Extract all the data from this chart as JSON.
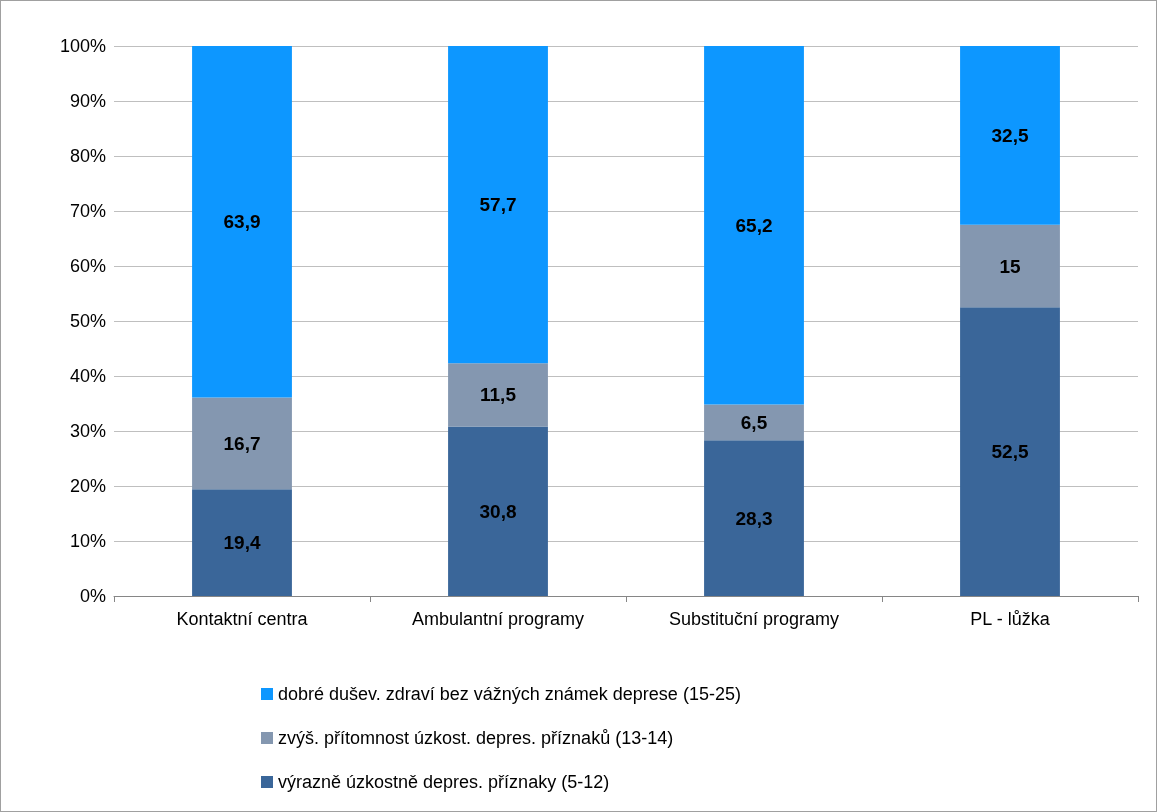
{
  "chart_data": {
    "type": "bar",
    "stacked": true,
    "categories": [
      "Kontaktní centra",
      "Ambulantní programy",
      "Substituční programy",
      "PL - lůžka"
    ],
    "series": [
      {
        "name": "výrazně úzkostně depres. příznaky (5-12)",
        "color": "#3a6699",
        "values": [
          19.4,
          30.8,
          28.3,
          52.5
        ],
        "value_labels": [
          "19,4",
          "30,8",
          "28,3",
          "52,5"
        ]
      },
      {
        "name": "zvýš. přítomnost úzkost. depres. příznaků (13-14)",
        "color": "#8497b0",
        "values": [
          16.7,
          11.5,
          6.5,
          15
        ],
        "value_labels": [
          "16,7",
          "11,5",
          "6,5",
          "15"
        ]
      },
      {
        "name": "dobré dušev. zdraví bez vážných známek deprese (15-25)",
        "color": "#0d97ff",
        "values": [
          63.9,
          57.7,
          65.2,
          32.5
        ],
        "value_labels": [
          "63,9",
          "57,7",
          "65,2",
          "32,5"
        ]
      }
    ],
    "ylim": [
      0,
      100
    ],
    "yticks": [
      {
        "value": 0,
        "label": "0%"
      },
      {
        "value": 10,
        "label": "10%"
      },
      {
        "value": 20,
        "label": "20%"
      },
      {
        "value": 30,
        "label": "30%"
      },
      {
        "value": 40,
        "label": "40%"
      },
      {
        "value": 50,
        "label": "50%"
      },
      {
        "value": 60,
        "label": "60%"
      },
      {
        "value": 70,
        "label": "70%"
      },
      {
        "value": 80,
        "label": "80%"
      },
      {
        "value": 90,
        "label": "90%"
      },
      {
        "value": 100,
        "label": "100%"
      }
    ],
    "grid": "y",
    "legend": "bottom"
  }
}
